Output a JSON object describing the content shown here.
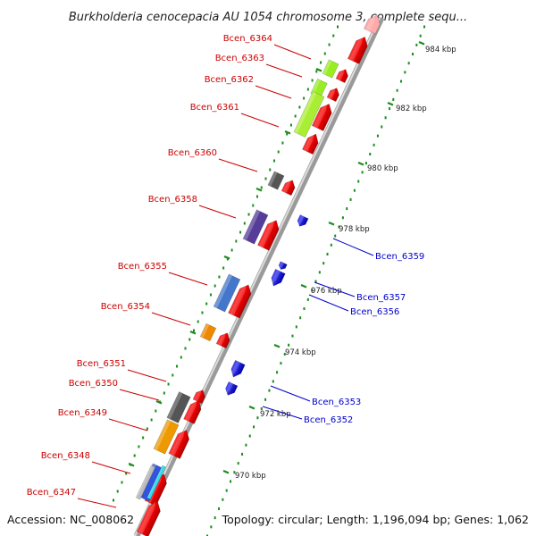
{
  "title": "Burkholderia cenocepacia AU 1054 chromosome 3, complete sequ...",
  "footer": {
    "accession": "Accession: NC_008062",
    "topology": "Topology: circular; Length: 1,196,094 bp; Genes: 1,062"
  },
  "colors": {
    "forward_label": "#cc0000",
    "reverse_label": "#0000cc",
    "forward_gene": "#ee0000",
    "reverse_gene": "#1111dd",
    "backbone": "#888888",
    "tick": "#1a8c1a"
  },
  "ticks": [
    {
      "label": "984 kbp"
    },
    {
      "label": "982 kbp"
    },
    {
      "label": "980 kbp"
    },
    {
      "label": "978 kbp"
    },
    {
      "label": "976 kbp"
    },
    {
      "label": "974 kbp"
    },
    {
      "label": "972 kbp"
    },
    {
      "label": "970 kbp"
    }
  ],
  "forward_genes": [
    {
      "name": "Bcen_6364"
    },
    {
      "name": "Bcen_6363"
    },
    {
      "name": "Bcen_6362"
    },
    {
      "name": "Bcen_6361"
    },
    {
      "name": "Bcen_6360"
    },
    {
      "name": "Bcen_6358"
    },
    {
      "name": "Bcen_6355"
    },
    {
      "name": "Bcen_6354"
    },
    {
      "name": "Bcen_6351"
    },
    {
      "name": "Bcen_6350"
    },
    {
      "name": "Bcen_6349"
    },
    {
      "name": "Bcen_6348"
    },
    {
      "name": "Bcen_6347"
    }
  ],
  "reverse_genes": [
    {
      "name": "Bcen_6359"
    },
    {
      "name": "Bcen_6357"
    },
    {
      "name": "Bcen_6356"
    },
    {
      "name": "Bcen_6353"
    },
    {
      "name": "Bcen_6352"
    }
  ]
}
